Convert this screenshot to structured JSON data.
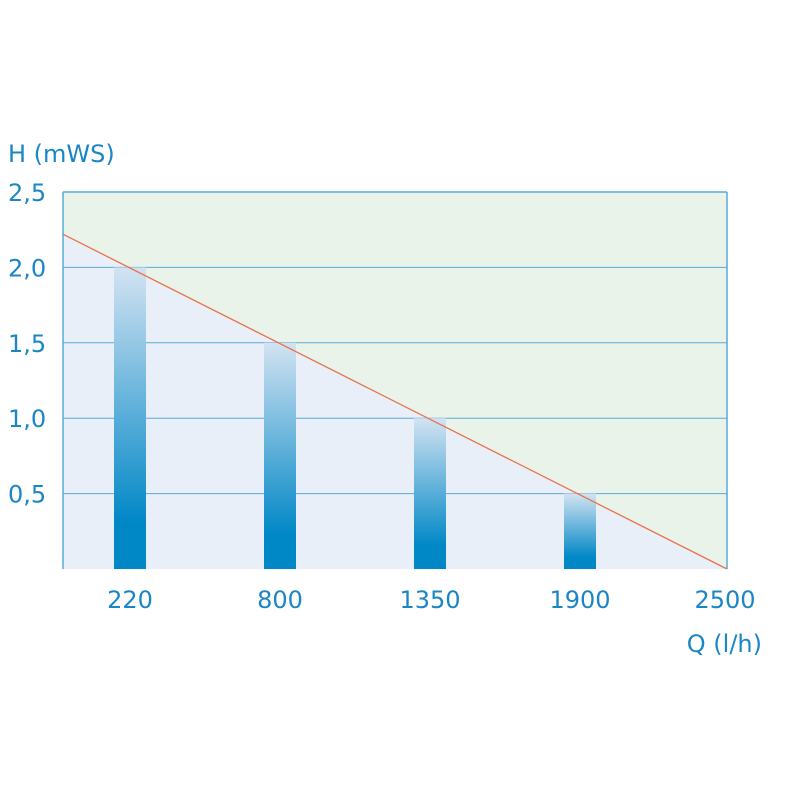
{
  "chart_data": {
    "type": "bar",
    "title": "",
    "ylabel": "H (mWS)",
    "xlabel": "Q (l/h)",
    "categories": [
      "220",
      "800",
      "1350",
      "1900",
      "2500"
    ],
    "values": [
      2.0,
      1.5,
      1.0,
      0.5,
      0
    ],
    "ylim": [
      0,
      2.5
    ],
    "yticks": [
      "0,5",
      "1,0",
      "1,5",
      "2,0",
      "2,5"
    ],
    "ytick_values": [
      0.5,
      1.0,
      1.5,
      2.0,
      2.5
    ],
    "grid": true,
    "pump_curve": {
      "head_at_left_edge": 2.22,
      "head_at_2500": 0
    },
    "colors": {
      "text": "#1b86c6",
      "axis": "#5aaad8",
      "curve": "#e8734a",
      "area_above": "#e9f3e9",
      "area_below": "#e8eff8",
      "bar_top": "#d3e3f2",
      "bar_bottom": "#0087c6"
    }
  }
}
